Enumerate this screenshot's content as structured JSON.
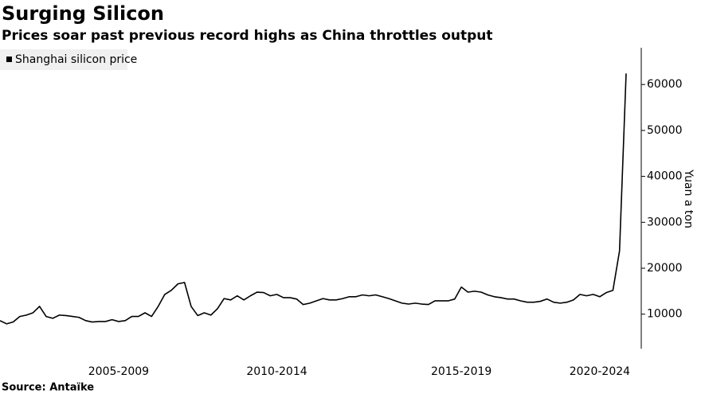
{
  "chart_data": {
    "type": "line",
    "title": "Surging Silicon",
    "subtitle": "Prices soar past previous record highs as China throttles output",
    "y_label": "Yuan a ton",
    "source": "Source: Antaïke",
    "categories": [
      null,
      null,
      null,
      null,
      null,
      null,
      null,
      null,
      null,
      null,
      null,
      null,
      null,
      null,
      null,
      null,
      null,
      null,
      "2005-2009",
      null,
      null,
      null,
      null,
      null,
      null,
      null,
      null,
      null,
      null,
      null,
      null,
      null,
      null,
      null,
      null,
      null,
      null,
      null,
      null,
      null,
      null,
      null,
      "2010-2014",
      null,
      null,
      null,
      null,
      null,
      null,
      null,
      null,
      null,
      null,
      null,
      null,
      null,
      null,
      null,
      null,
      null,
      null,
      null,
      null,
      null,
      null,
      null,
      null,
      null,
      null,
      null,
      "2015-2019",
      null,
      null,
      null,
      null,
      null,
      null,
      null,
      null,
      null,
      null,
      null,
      null,
      null,
      null,
      null,
      null,
      null,
      null,
      null,
      null,
      "2020-2024",
      null,
      null,
      null,
      null
    ],
    "series": [
      {
        "name": "Shanghai silicon price",
        "color": "#000000",
        "values": [
          8600,
          7900,
          8300,
          9500,
          9800,
          10300,
          11700,
          9500,
          9100,
          9800,
          9700,
          9500,
          9300,
          8600,
          8300,
          8400,
          8400,
          8800,
          8400,
          8600,
          9500,
          9500,
          10300,
          9500,
          11700,
          14300,
          15200,
          16600,
          16900,
          11700,
          9700,
          10300,
          9800,
          11200,
          13400,
          13100,
          14000,
          13100,
          14000,
          14800,
          14700,
          14000,
          14300,
          13600,
          13600,
          13300,
          12100,
          12400,
          12900,
          13400,
          13100,
          13100,
          13400,
          13800,
          13800,
          14200,
          14000,
          14200,
          13800,
          13400,
          12900,
          12400,
          12200,
          12400,
          12200,
          12100,
          12900,
          12900,
          12900,
          13300,
          15900,
          14800,
          15000,
          14800,
          14200,
          13800,
          13600,
          13300,
          13300,
          12900,
          12600,
          12600,
          12800,
          13300,
          12600,
          12400,
          12600,
          13100,
          14300,
          14000,
          14300,
          13800,
          14700,
          15200,
          23800,
          62400
        ]
      }
    ],
    "ylim": [
      2500,
      68000
    ],
    "yticks": [
      10000,
      20000,
      30000,
      40000,
      50000,
      60000
    ],
    "y_axis_side": "right",
    "legend": "top-left"
  }
}
